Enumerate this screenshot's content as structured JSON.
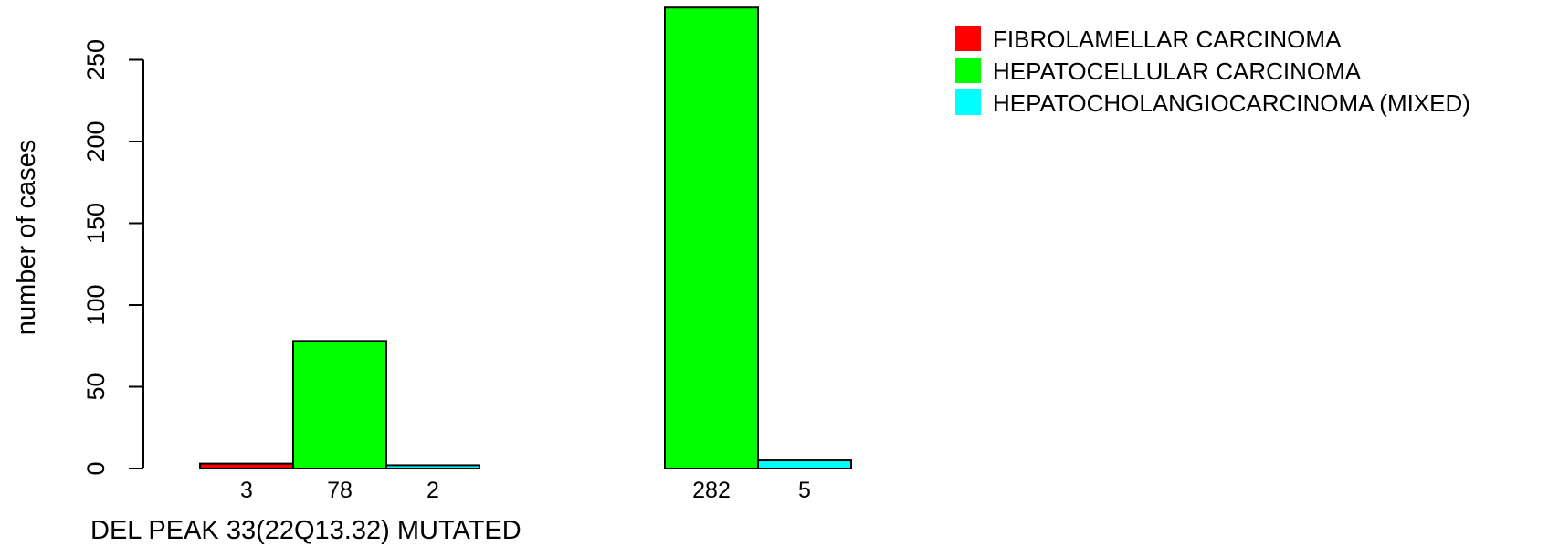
{
  "chart_data": {
    "type": "bar",
    "xlabel": "DEL PEAK 33(22Q13.32) MUTATED",
    "ylabel": "number of cases",
    "ylim": [
      0,
      282
    ],
    "yticks": [
      0,
      50,
      100,
      150,
      200,
      250
    ],
    "grid": false,
    "legend_position": "top-right",
    "legend_entries": [
      "FIBROLAMELLAR CARCINOMA",
      "HEPATOCELLULAR CARCINOMA",
      "HEPATOCHOLANGIOCARCINOMA (MIXED)"
    ],
    "series": [
      {
        "name": "FIBROLAMELLAR CARCINOMA",
        "color": "#ff0000",
        "values": [
          3,
          0
        ]
      },
      {
        "name": "HEPATOCELLULAR CARCINOMA",
        "color": "#00ff00",
        "values": [
          78,
          282
        ]
      },
      {
        "name": "HEPATOCHOLANGIOCARCINOMA (MIXED)",
        "color": "#00ffff",
        "values": [
          2,
          5
        ]
      }
    ],
    "data_labels": [
      [
        "3",
        "78",
        "2"
      ],
      [
        "",
        "282",
        "5"
      ]
    ]
  }
}
